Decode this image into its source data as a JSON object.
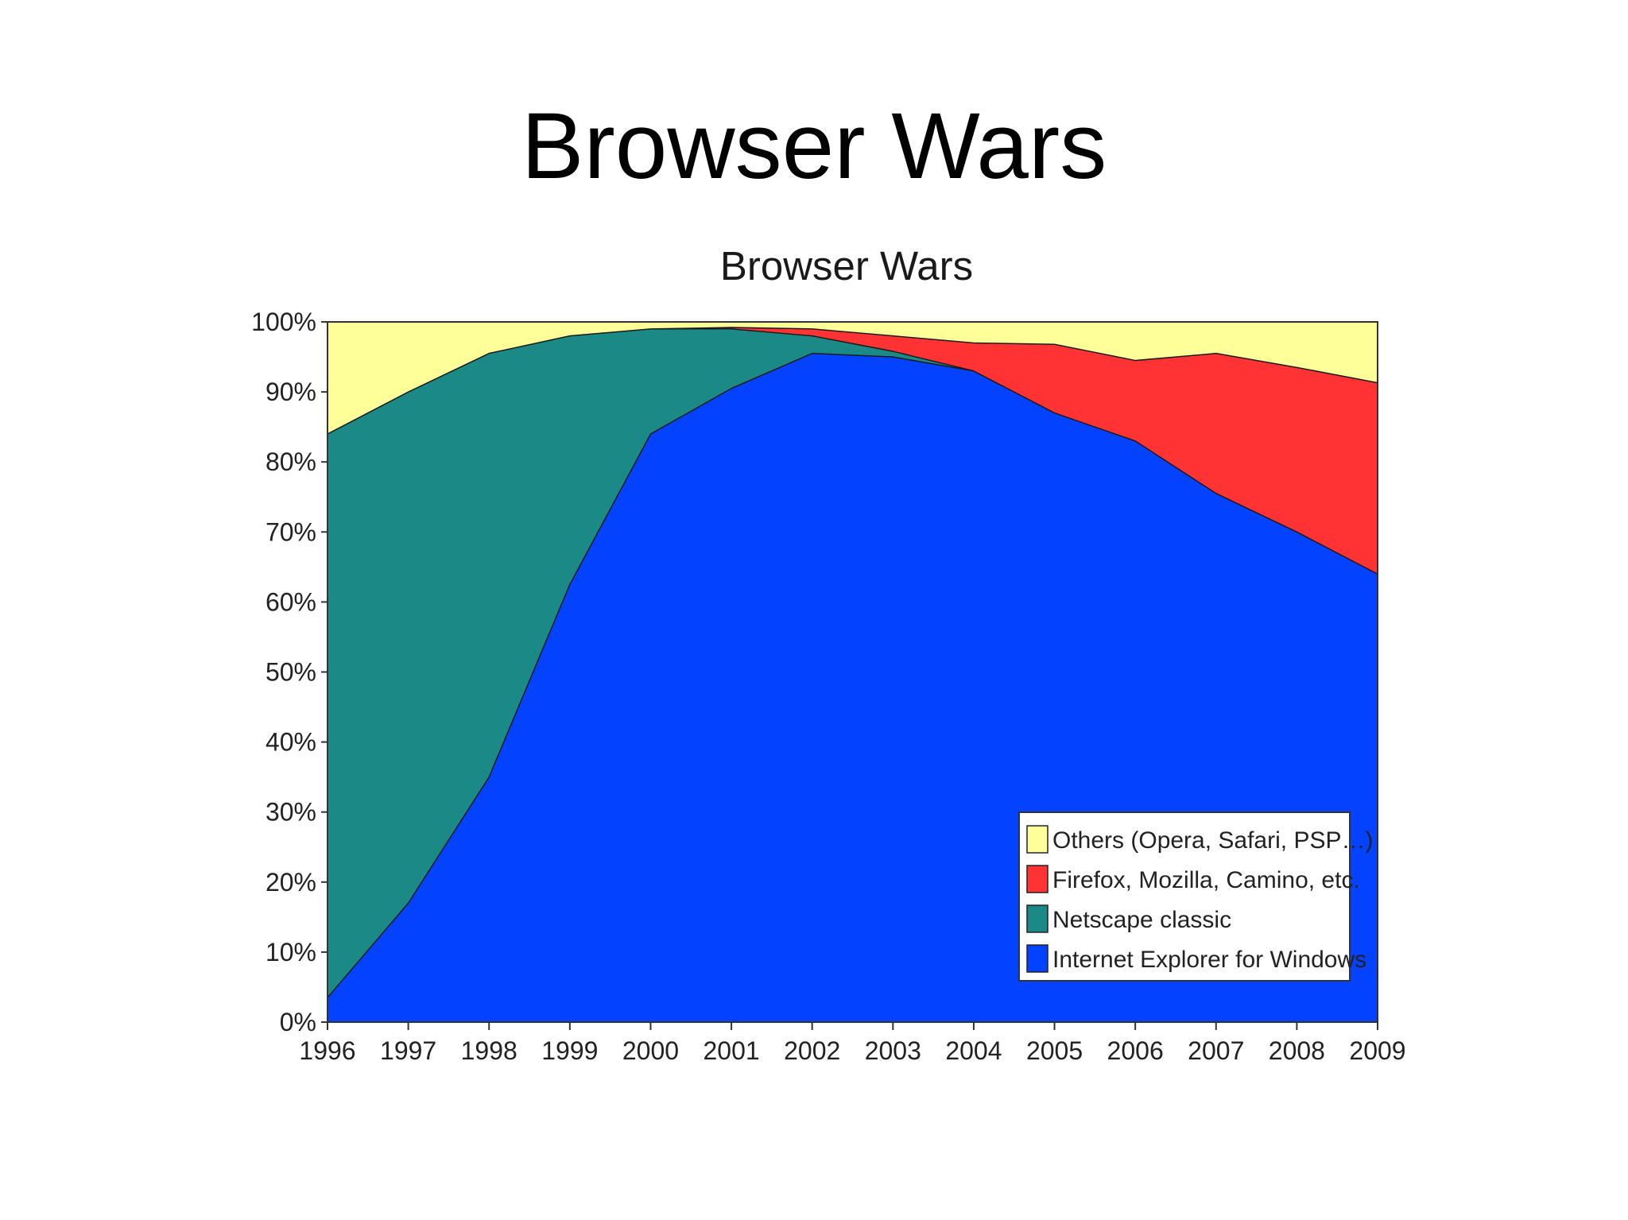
{
  "slide": {
    "title": "Browser Wars"
  },
  "chart_data": {
    "type": "area",
    "stacked": true,
    "percent": true,
    "title": "Browser Wars",
    "xlabel": "",
    "ylabel": "",
    "x": [
      1996,
      1997,
      1998,
      1999,
      2000,
      2001,
      2002,
      2003,
      2004,
      2005,
      2006,
      2007,
      2008,
      2009
    ],
    "ylim": [
      0,
      100
    ],
    "yticks": [
      "0%",
      "10%",
      "20%",
      "30%",
      "40%",
      "50%",
      "60%",
      "70%",
      "80%",
      "90%",
      "100%"
    ],
    "xticks": [
      "1996",
      "1997",
      "1998",
      "1999",
      "2000",
      "2001",
      "2002",
      "2003",
      "2004",
      "2005",
      "2006",
      "2007",
      "2008",
      "2009"
    ],
    "grid": false,
    "legend_position": "bottom-right",
    "series": [
      {
        "name": "Internet Explorer for Windows",
        "color": "#0343ff",
        "values": [
          3.5,
          17,
          35,
          62.5,
          84,
          90.5,
          95.5,
          95,
          93,
          87,
          83,
          75.5,
          70,
          64
        ]
      },
      {
        "name": "Netscape classic",
        "color": "#1b8a87",
        "values": [
          80.5,
          73,
          60.5,
          35.5,
          15,
          8.5,
          2.5,
          0.8,
          0,
          0,
          0,
          0,
          0,
          0
        ]
      },
      {
        "name": "Firefox, Mozilla, Camino, etc.",
        "color": "#ff3333",
        "values": [
          0,
          0,
          0,
          0,
          0,
          0.2,
          1,
          2.2,
          4,
          9.8,
          11.5,
          20,
          23.5,
          27.3
        ]
      },
      {
        "name": "Others (Opera, Safari, PSP…)",
        "color": "#ffff99",
        "values": [
          16,
          10,
          4.5,
          2,
          1,
          0.8,
          1,
          2,
          3,
          3.2,
          5.5,
          4.5,
          6.5,
          8.7
        ]
      }
    ]
  }
}
